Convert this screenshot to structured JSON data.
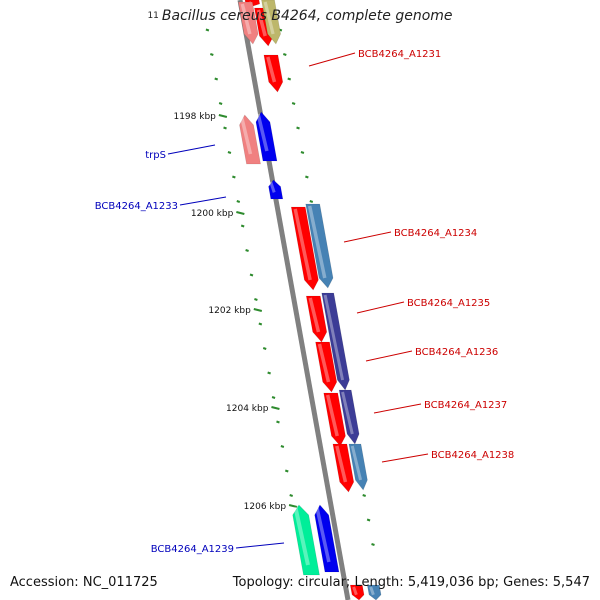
{
  "header": {
    "prefix": "11",
    "title": "Bacillus cereus B4264, complete genome"
  },
  "footer": {
    "accession_label": "Accession:",
    "accession": "NC_011725",
    "topology_label": "Topology:",
    "topology": "circular",
    "length_label": "Length:",
    "length": "5,419,036 bp",
    "genes_label": "Genes:",
    "genes": "5,547"
  },
  "colors": {
    "backbone": "#808080",
    "tick": "#2e8b2e",
    "forward_label": "#cc0000",
    "reverse_label": "#0000bb",
    "red_gene": "#ff0000",
    "blue_gene": "#0000ee",
    "steel_gene": "#4682b4",
    "purple_gene": "#3c3c96",
    "pink_gene": "#f08080",
    "olive_gene": "#bdb76b",
    "green_gene": "#00ee99"
  },
  "scale_labels": [
    "1198 kbp",
    "1200 kbp",
    "1202 kbp",
    "1204 kbp",
    "1206 kbp"
  ],
  "gene_labels": [
    {
      "name": "BCB4264_A1231",
      "strand": "forward"
    },
    {
      "name": "trpS",
      "strand": "reverse"
    },
    {
      "name": "BCB4264_A1233",
      "strand": "reverse"
    },
    {
      "name": "BCB4264_A1234",
      "strand": "forward"
    },
    {
      "name": "BCB4264_A1235",
      "strand": "forward"
    },
    {
      "name": "BCB4264_A1236",
      "strand": "forward"
    },
    {
      "name": "BCB4264_A1237",
      "strand": "forward"
    },
    {
      "name": "BCB4264_A1238",
      "strand": "forward"
    },
    {
      "name": "BCB4264_A1239",
      "strand": "reverse"
    }
  ]
}
